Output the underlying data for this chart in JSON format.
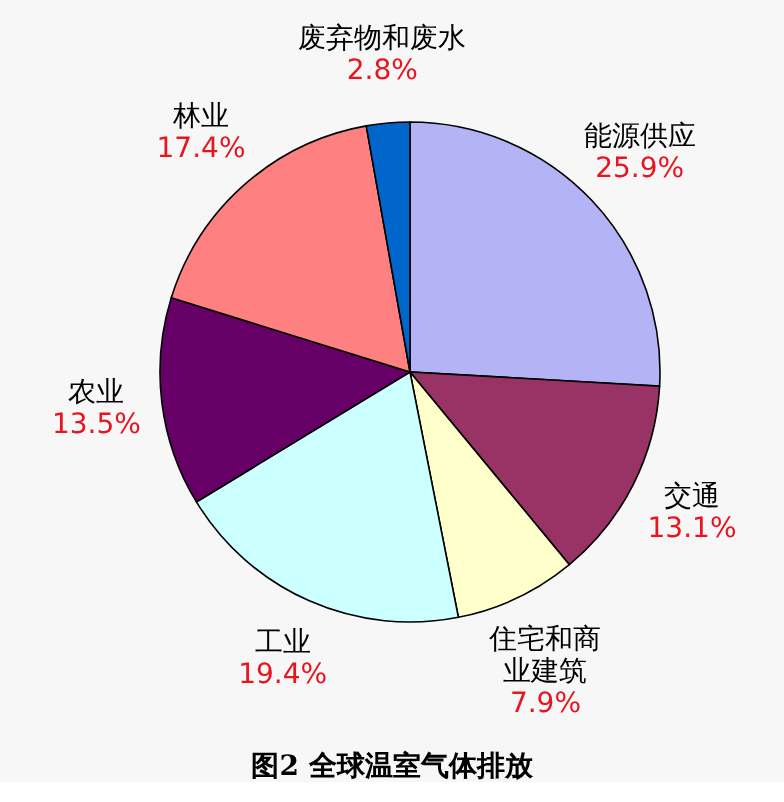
{
  "chart_data": {
    "type": "pie",
    "title": "图2 全球温室气体排放",
    "categories": [
      "能源供应",
      "交通",
      "住宅和商业建筑",
      "工业",
      "农业",
      "林业",
      "废弃物和废水"
    ],
    "values": [
      25.9,
      13.1,
      7.9,
      19.4,
      13.5,
      17.4,
      2.8
    ],
    "colors": [
      "#b3b3f5",
      "#993366",
      "#ffffcc",
      "#ccffff",
      "#660066",
      "#ff8080",
      "#0066cc"
    ],
    "value_labels": [
      "25.9%",
      "13.1%",
      "7.9%",
      "19.4%",
      "13.5%",
      "17.4%",
      "2.8%"
    ],
    "legend": false
  }
}
